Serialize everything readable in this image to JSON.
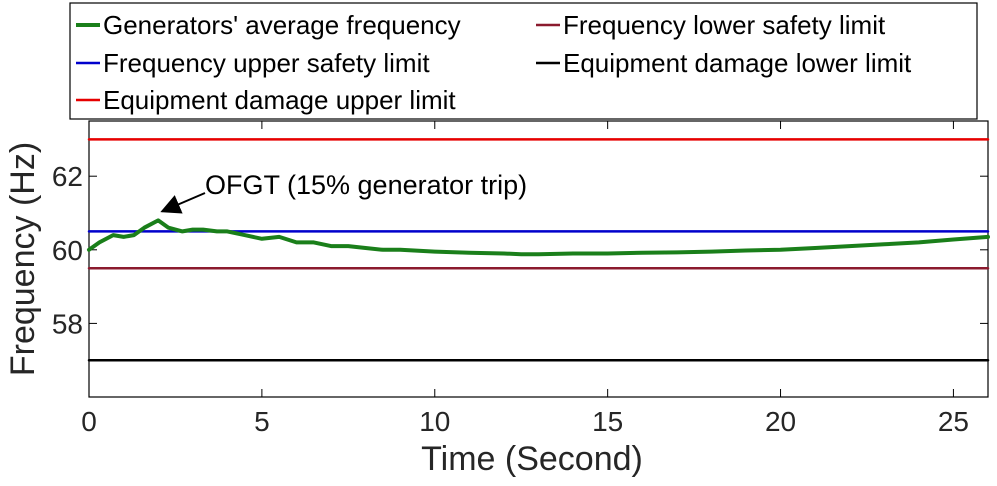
{
  "chart_data": {
    "type": "line",
    "xlabel": "Time (Second)",
    "ylabel": "Frequency (Hz)",
    "xlim": [
      0,
      26
    ],
    "ylim": [
      56.0,
      63.5
    ],
    "xticks": [
      0,
      5,
      10,
      15,
      20,
      25
    ],
    "yticks": [
      58,
      60,
      62
    ],
    "grid": false,
    "legend_position": "top",
    "series": [
      {
        "name": "Generators' average frequency",
        "color": "#1a7f1a",
        "x": [
          0,
          0.3,
          0.7,
          1.0,
          1.3,
          1.6,
          2.0,
          2.3,
          2.7,
          3.0,
          3.3,
          3.7,
          4.0,
          4.5,
          5.0,
          5.5,
          6.0,
          6.5,
          7.0,
          7.5,
          8.0,
          8.5,
          9.0,
          10.0,
          11.0,
          12.0,
          12.5,
          13.0,
          14.0,
          15.0,
          16.0,
          17.0,
          18.0,
          19.0,
          20.0,
          21.0,
          22.0,
          23.0,
          24.0,
          25.0,
          26.0
        ],
        "y": [
          60.0,
          60.2,
          60.4,
          60.35,
          60.4,
          60.6,
          60.8,
          60.6,
          60.5,
          60.55,
          60.55,
          60.5,
          60.5,
          60.4,
          60.3,
          60.35,
          60.2,
          60.2,
          60.1,
          60.1,
          60.05,
          60.0,
          60.0,
          59.95,
          59.92,
          59.9,
          59.88,
          59.88,
          59.9,
          59.9,
          59.92,
          59.93,
          59.95,
          59.98,
          60.0,
          60.05,
          60.1,
          60.15,
          60.2,
          60.28,
          60.35
        ]
      },
      {
        "name": "Frequency upper safety limit",
        "color": "#0000cc",
        "x": [
          0,
          26
        ],
        "y": [
          60.5,
          60.5
        ]
      },
      {
        "name": "Equipment damage upper limit",
        "color": "#e60000",
        "x": [
          0,
          26
        ],
        "y": [
          63.0,
          63.0
        ]
      },
      {
        "name": "Frequency lower safety limit",
        "color": "#8b1a2e",
        "x": [
          0,
          26
        ],
        "y": [
          59.5,
          59.5
        ]
      },
      {
        "name": "Equipment damage lower limit",
        "color": "#000000",
        "x": [
          0,
          26
        ],
        "y": [
          57.0,
          57.0
        ]
      }
    ],
    "annotations": [
      {
        "text": "OFGT (15% generator trip)",
        "arrow_to": {
          "x": 2.0,
          "y": 60.8
        }
      }
    ]
  }
}
